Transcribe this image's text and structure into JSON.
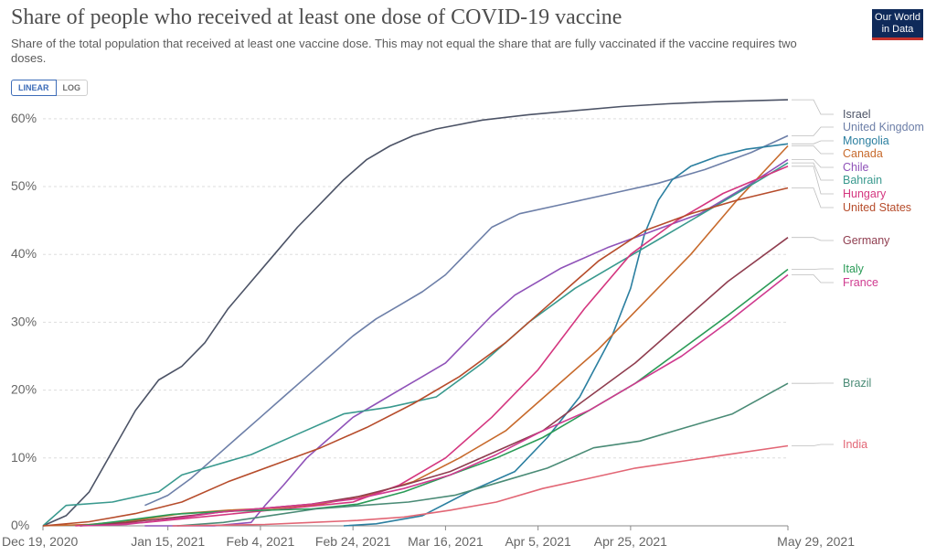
{
  "header": {
    "title": "Share of people who received at least one dose of COVID-19 vaccine",
    "subtitle": "Share of the total population that received at least one vaccine dose. This may not equal the share that are fully vaccinated if the vaccine requires two doses.",
    "logo": "Our World in Data",
    "toggle": {
      "linear": "LINEAR",
      "log": "LOG",
      "selected": "LINEAR"
    }
  },
  "chart_data": {
    "type": "line",
    "x_ticks": [
      "Dec 19, 2020",
      "Jan 15, 2021",
      "Feb 4, 2021",
      "Feb 24, 2021",
      "Mar 16, 2021",
      "Apr 5, 2021",
      "Apr 25, 2021",
      "May 29, 2021"
    ],
    "x_start": "Dec 19, 2020",
    "x_end": "May 29, 2021",
    "y_ticks": [
      "0%",
      "10%",
      "20%",
      "30%",
      "40%",
      "50%",
      "60%"
    ],
    "ylim": [
      0,
      62
    ],
    "grid": "horizontal-dashed",
    "legend": "right",
    "series": [
      {
        "name": "Israel",
        "color": "#4c5366",
        "x": [
          "2020-12-19",
          "2020-12-24",
          "2020-12-29",
          "2021-01-03",
          "2021-01-08",
          "2021-01-13",
          "2021-01-18",
          "2021-01-23",
          "2021-01-28",
          "2021-02-02",
          "2021-02-07",
          "2021-02-12",
          "2021-02-17",
          "2021-02-22",
          "2021-02-27",
          "2021-03-04",
          "2021-03-09",
          "2021-03-14",
          "2021-03-24",
          "2021-04-03",
          "2021-04-13",
          "2021-04-23",
          "2021-05-03",
          "2021-05-13",
          "2021-05-29"
        ],
        "y": [
          0,
          1.5,
          5,
          11,
          17,
          21.5,
          23.5,
          27,
          32,
          36,
          40,
          44,
          47.5,
          51,
          54,
          56,
          57.5,
          58.5,
          59.8,
          60.6,
          61.2,
          61.8,
          62.2,
          62.5,
          62.8
        ]
      },
      {
        "name": "United Kingdom",
        "color": "#6d7fa8",
        "x": [
          "2021-01-10",
          "2021-01-15",
          "2021-01-20",
          "2021-01-25",
          "2021-01-30",
          "2021-02-04",
          "2021-02-09",
          "2021-02-14",
          "2021-02-19",
          "2021-02-24",
          "2021-03-01",
          "2021-03-06",
          "2021-03-11",
          "2021-03-16",
          "2021-03-21",
          "2021-03-26",
          "2021-04-01",
          "2021-04-11",
          "2021-04-21",
          "2021-05-01",
          "2021-05-11",
          "2021-05-21",
          "2021-05-29"
        ],
        "y": [
          3,
          4.5,
          7,
          10,
          13,
          16,
          19,
          22,
          25,
          28,
          30.5,
          32.5,
          34.5,
          37,
          40.5,
          44,
          46,
          47.5,
          49,
          50.5,
          52.5,
          55,
          57.5
        ]
      },
      {
        "name": "Mongolia",
        "color": "#2b7fa0",
        "x": [
          "2021-02-22",
          "2021-03-01",
          "2021-03-11",
          "2021-03-21",
          "2021-03-31",
          "2021-04-07",
          "2021-04-14",
          "2021-04-21",
          "2021-04-25",
          "2021-04-28",
          "2021-05-01",
          "2021-05-04",
          "2021-05-08",
          "2021-05-14",
          "2021-05-20",
          "2021-05-29"
        ],
        "y": [
          0,
          0.3,
          1.5,
          5,
          8,
          13,
          19,
          28,
          35,
          43,
          48,
          51,
          53,
          54.5,
          55.5,
          56.3
        ]
      },
      {
        "name": "Canada",
        "color": "#c76a2c",
        "x": [
          "2020-12-19",
          "2020-12-29",
          "2021-01-08",
          "2021-01-18",
          "2021-01-28",
          "2021-02-07",
          "2021-02-17",
          "2021-02-27",
          "2021-03-09",
          "2021-03-19",
          "2021-03-29",
          "2021-04-08",
          "2021-04-18",
          "2021-04-28",
          "2021-05-08",
          "2021-05-18",
          "2021-05-29"
        ],
        "y": [
          0,
          0.2,
          0.8,
          1.8,
          2.3,
          2.6,
          3.2,
          4.5,
          6.5,
          10,
          14,
          20,
          26,
          33,
          40,
          48,
          56
        ]
      },
      {
        "name": "Chile",
        "color": "#8f52b8",
        "x": [
          "2021-01-10",
          "2021-01-25",
          "2021-02-02",
          "2021-02-05",
          "2021-02-09",
          "2021-02-14",
          "2021-02-19",
          "2021-02-24",
          "2021-03-01",
          "2021-03-06",
          "2021-03-11",
          "2021-03-16",
          "2021-03-21",
          "2021-03-26",
          "2021-03-31",
          "2021-04-05",
          "2021-04-10",
          "2021-04-20",
          "2021-04-30",
          "2021-05-10",
          "2021-05-20",
          "2021-05-29"
        ],
        "y": [
          0,
          0,
          0.5,
          3,
          6,
          10,
          13,
          16,
          18,
          20,
          22,
          24,
          27.5,
          31,
          34,
          36,
          38,
          41,
          43.5,
          46,
          50,
          54
        ]
      },
      {
        "name": "Bahrain",
        "color": "#39998e",
        "x": [
          "2020-12-19",
          "2020-12-24",
          "2021-01-03",
          "2021-01-13",
          "2021-01-18",
          "2021-01-23",
          "2021-02-02",
          "2021-02-12",
          "2021-02-22",
          "2021-03-04",
          "2021-03-14",
          "2021-03-24",
          "2021-04-03",
          "2021-04-13",
          "2021-04-23",
          "2021-05-03",
          "2021-05-13",
          "2021-05-23",
          "2021-05-29"
        ],
        "y": [
          0,
          3,
          3.5,
          5,
          7.5,
          8.5,
          10.5,
          13.5,
          16.5,
          17.5,
          19,
          24,
          30,
          35,
          39,
          43,
          47,
          51,
          53.5
        ]
      },
      {
        "name": "Hungary",
        "color": "#d4367f",
        "x": [
          "2020-12-26",
          "2021-01-10",
          "2021-01-25",
          "2021-02-09",
          "2021-02-24",
          "2021-03-06",
          "2021-03-16",
          "2021-03-26",
          "2021-04-05",
          "2021-04-15",
          "2021-04-25",
          "2021-05-05",
          "2021-05-15",
          "2021-05-29"
        ],
        "y": [
          0,
          0.5,
          1.5,
          2.5,
          3.5,
          6,
          10,
          16,
          23,
          32,
          40,
          45,
          49,
          53
        ]
      },
      {
        "name": "United States",
        "color": "#b64c2b",
        "x": [
          "2020-12-19",
          "2020-12-29",
          "2021-01-08",
          "2021-01-18",
          "2021-01-28",
          "2021-02-07",
          "2021-02-17",
          "2021-02-27",
          "2021-03-09",
          "2021-03-19",
          "2021-03-29",
          "2021-04-08",
          "2021-04-18",
          "2021-04-28",
          "2021-05-08",
          "2021-05-18",
          "2021-05-29"
        ],
        "y": [
          0,
          0.6,
          1.8,
          3.5,
          6.5,
          9,
          11.5,
          14.5,
          18,
          22,
          27,
          33,
          39,
          43.5,
          46,
          48,
          49.8
        ]
      },
      {
        "name": "Germany",
        "color": "#8f3d4f",
        "x": [
          "2020-12-27",
          "2021-01-06",
          "2021-01-16",
          "2021-01-26",
          "2021-02-05",
          "2021-02-15",
          "2021-02-25",
          "2021-03-07",
          "2021-03-17",
          "2021-03-27",
          "2021-04-06",
          "2021-04-16",
          "2021-04-26",
          "2021-05-06",
          "2021-05-16",
          "2021-05-29"
        ],
        "y": [
          0,
          0.5,
          1.2,
          2,
          2.6,
          3.2,
          4.3,
          6,
          8,
          11,
          14,
          19,
          24,
          30,
          36,
          42.5
        ]
      },
      {
        "name": "Italy",
        "color": "#2a9b57",
        "x": [
          "2020-12-27",
          "2021-01-06",
          "2021-01-16",
          "2021-01-26",
          "2021-02-05",
          "2021-02-15",
          "2021-02-25",
          "2021-03-07",
          "2021-03-17",
          "2021-03-27",
          "2021-04-06",
          "2021-04-16",
          "2021-04-26",
          "2021-05-06",
          "2021-05-16",
          "2021-05-29"
        ],
        "y": [
          0,
          0.8,
          1.7,
          2.1,
          2.3,
          2.5,
          3.2,
          5,
          7.5,
          10,
          13,
          17,
          21,
          26,
          31,
          37.8
        ]
      },
      {
        "name": "France",
        "color": "#cf3a8f",
        "x": [
          "2020-12-27",
          "2021-01-06",
          "2021-01-16",
          "2021-01-26",
          "2021-02-05",
          "2021-02-15",
          "2021-02-25",
          "2021-03-07",
          "2021-03-17",
          "2021-03-27",
          "2021-04-06",
          "2021-04-16",
          "2021-04-26",
          "2021-05-06",
          "2021-05-16",
          "2021-05-29"
        ],
        "y": [
          0,
          0.2,
          1,
          2,
          2.6,
          3.2,
          4,
          5.5,
          7.5,
          10.5,
          14,
          17,
          21,
          25,
          30,
          37
        ]
      },
      {
        "name": "Brazil",
        "color": "#4a8b76",
        "x": [
          "2021-01-17",
          "2021-01-27",
          "2021-02-06",
          "2021-02-16",
          "2021-02-26",
          "2021-03-08",
          "2021-03-18",
          "2021-03-28",
          "2021-04-07",
          "2021-04-17",
          "2021-04-27",
          "2021-05-07",
          "2021-05-17",
          "2021-05-29"
        ],
        "y": [
          0,
          0.5,
          1.5,
          2.5,
          3,
          3.5,
          4.5,
          6.5,
          8.5,
          11.5,
          12.5,
          14.5,
          16.5,
          21
        ]
      },
      {
        "name": "India",
        "color": "#e26675",
        "x": [
          "2021-01-16",
          "2021-01-26",
          "2021-02-05",
          "2021-02-15",
          "2021-02-25",
          "2021-03-07",
          "2021-03-17",
          "2021-03-27",
          "2021-04-06",
          "2021-04-16",
          "2021-04-26",
          "2021-05-06",
          "2021-05-16",
          "2021-05-29"
        ],
        "y": [
          0,
          0.1,
          0.2,
          0.5,
          0.8,
          1.3,
          2.3,
          3.5,
          5.5,
          7,
          8.5,
          9.5,
          10.5,
          11.8
        ]
      }
    ]
  }
}
